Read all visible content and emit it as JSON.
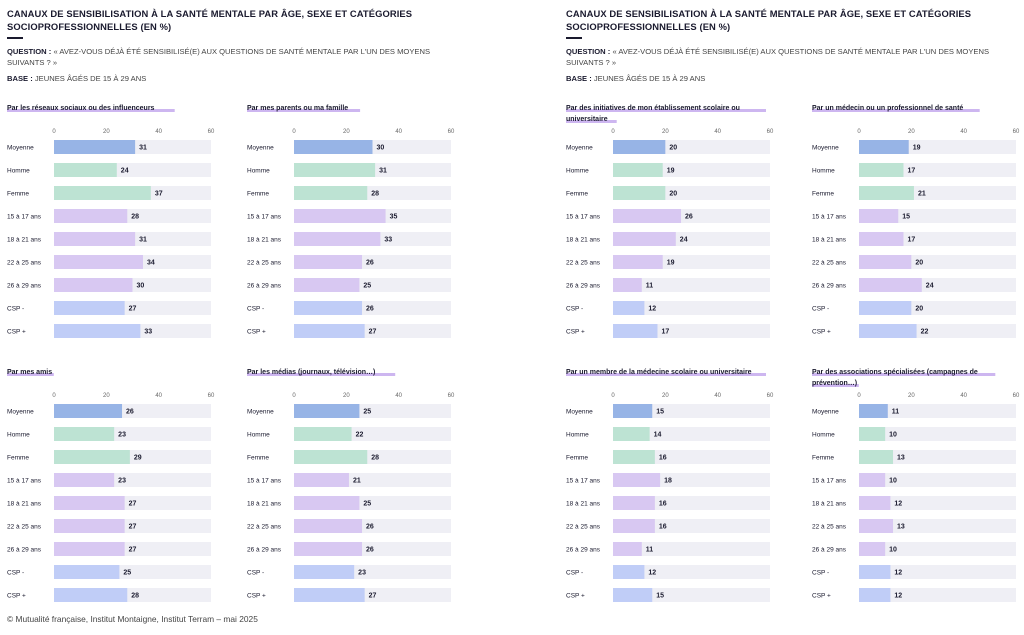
{
  "header": {
    "title": "CANAUX DE SENSIBILISATION À LA SANTÉ MENTALE PAR ÂGE, SEXE ET CATÉGORIES SOCIOPROFESSIONNELLES (EN %)",
    "question_label": "QUESTION :",
    "question_text": "« AVEZ-VOUS DÉJÀ ÉTÉ SENSIBILISÉ(E) AUX QUESTIONS DE SANTÉ MENTALE PAR L'UN DES MOYENS SUIVANTS ? »",
    "base_label": "BASE :",
    "base_text": "JEUNES ÂGÉS DE 15 À 29 ANS"
  },
  "footer": "© Mutualité française, Institut Montaigne, Institut Terram – mai 2025",
  "colors": {
    "moyenne": "#97b4e6",
    "sexe": "#bde3d3",
    "age": "#d8c8f2",
    "csp": "#c0cdf7",
    "track": "#efeff5",
    "title_highlight": "#cdb6f0"
  },
  "chart_data": [
    {
      "type": "bar",
      "title": "Par les réseaux sociaux ou des influenceurs",
      "categories": [
        "Moyenne",
        "Homme",
        "Femme",
        "15 à 17 ans",
        "18 à 21 ans",
        "22 à 25 ans",
        "26 à 29 ans",
        "CSP -",
        "CSP +"
      ],
      "values": [
        31,
        24,
        37,
        28,
        31,
        34,
        30,
        27,
        33
      ],
      "xlim": [
        0,
        60
      ],
      "ticks": [
        0,
        20,
        40,
        60
      ]
    },
    {
      "type": "bar",
      "title": "Par mes parents ou ma famille",
      "categories": [
        "Moyenne",
        "Homme",
        "Femme",
        "15 à 17 ans",
        "18 à 21 ans",
        "22 à 25 ans",
        "26 à 29 ans",
        "CSP -",
        "CSP +"
      ],
      "values": [
        30,
        31,
        28,
        35,
        33,
        26,
        25,
        26,
        27
      ],
      "xlim": [
        0,
        60
      ],
      "ticks": [
        0,
        20,
        40,
        60
      ]
    },
    {
      "type": "bar",
      "title": "Par des initiatives de mon établissement scolaire ou universitaire",
      "categories": [
        "Moyenne",
        "Homme",
        "Femme",
        "15 à 17 ans",
        "18 à 21 ans",
        "22 à 25 ans",
        "26 à 29 ans",
        "CSP -",
        "CSP +"
      ],
      "values": [
        20,
        19,
        20,
        26,
        24,
        19,
        11,
        12,
        17
      ],
      "xlim": [
        0,
        60
      ],
      "ticks": [
        0,
        20,
        40,
        60
      ]
    },
    {
      "type": "bar",
      "title": "Par un médecin ou un professionnel de santé",
      "categories": [
        "Moyenne",
        "Homme",
        "Femme",
        "15 à 17 ans",
        "18 à 21 ans",
        "22 à 25 ans",
        "26 à 29 ans",
        "CSP -",
        "CSP +"
      ],
      "values": [
        19,
        17,
        21,
        15,
        17,
        20,
        24,
        20,
        22
      ],
      "xlim": [
        0,
        60
      ],
      "ticks": [
        0,
        20,
        40,
        60
      ]
    },
    {
      "type": "bar",
      "title": "Par mes amis",
      "categories": [
        "Moyenne",
        "Homme",
        "Femme",
        "15 à 17 ans",
        "18 à 21 ans",
        "22 à 25 ans",
        "26 à 29 ans",
        "CSP -",
        "CSP +"
      ],
      "values": [
        26,
        23,
        29,
        23,
        27,
        27,
        27,
        25,
        28
      ],
      "xlim": [
        0,
        60
      ],
      "ticks": [
        0,
        20,
        40,
        60
      ]
    },
    {
      "type": "bar",
      "title": "Par les médias (journaux, télévision…)",
      "categories": [
        "Moyenne",
        "Homme",
        "Femme",
        "15 à 17 ans",
        "18 à 21 ans",
        "22 à 25 ans",
        "26 à 29 ans",
        "CSP -",
        "CSP +"
      ],
      "values": [
        25,
        22,
        28,
        21,
        25,
        26,
        26,
        23,
        27
      ],
      "xlim": [
        0,
        60
      ],
      "ticks": [
        0,
        20,
        40,
        60
      ]
    },
    {
      "type": "bar",
      "title": "Par un membre de la médecine scolaire ou universitaire",
      "categories": [
        "Moyenne",
        "Homme",
        "Femme",
        "15 à 17 ans",
        "18 à 21 ans",
        "22 à 25 ans",
        "26 à 29 ans",
        "CSP -",
        "CSP +"
      ],
      "values": [
        15,
        14,
        16,
        18,
        16,
        16,
        11,
        12,
        15
      ],
      "xlim": [
        0,
        60
      ],
      "ticks": [
        0,
        20,
        40,
        60
      ]
    },
    {
      "type": "bar",
      "title": "Par des associations spécialisées (campagnes de prévention…)",
      "categories": [
        "Moyenne",
        "Homme",
        "Femme",
        "15 à 17 ans",
        "18 à 21 ans",
        "22 à 25 ans",
        "26 à 29 ans",
        "CSP -",
        "CSP +"
      ],
      "values": [
        11,
        10,
        13,
        10,
        12,
        13,
        10,
        12,
        12
      ],
      "xlim": [
        0,
        60
      ],
      "ticks": [
        0,
        20,
        40,
        60
      ]
    }
  ]
}
